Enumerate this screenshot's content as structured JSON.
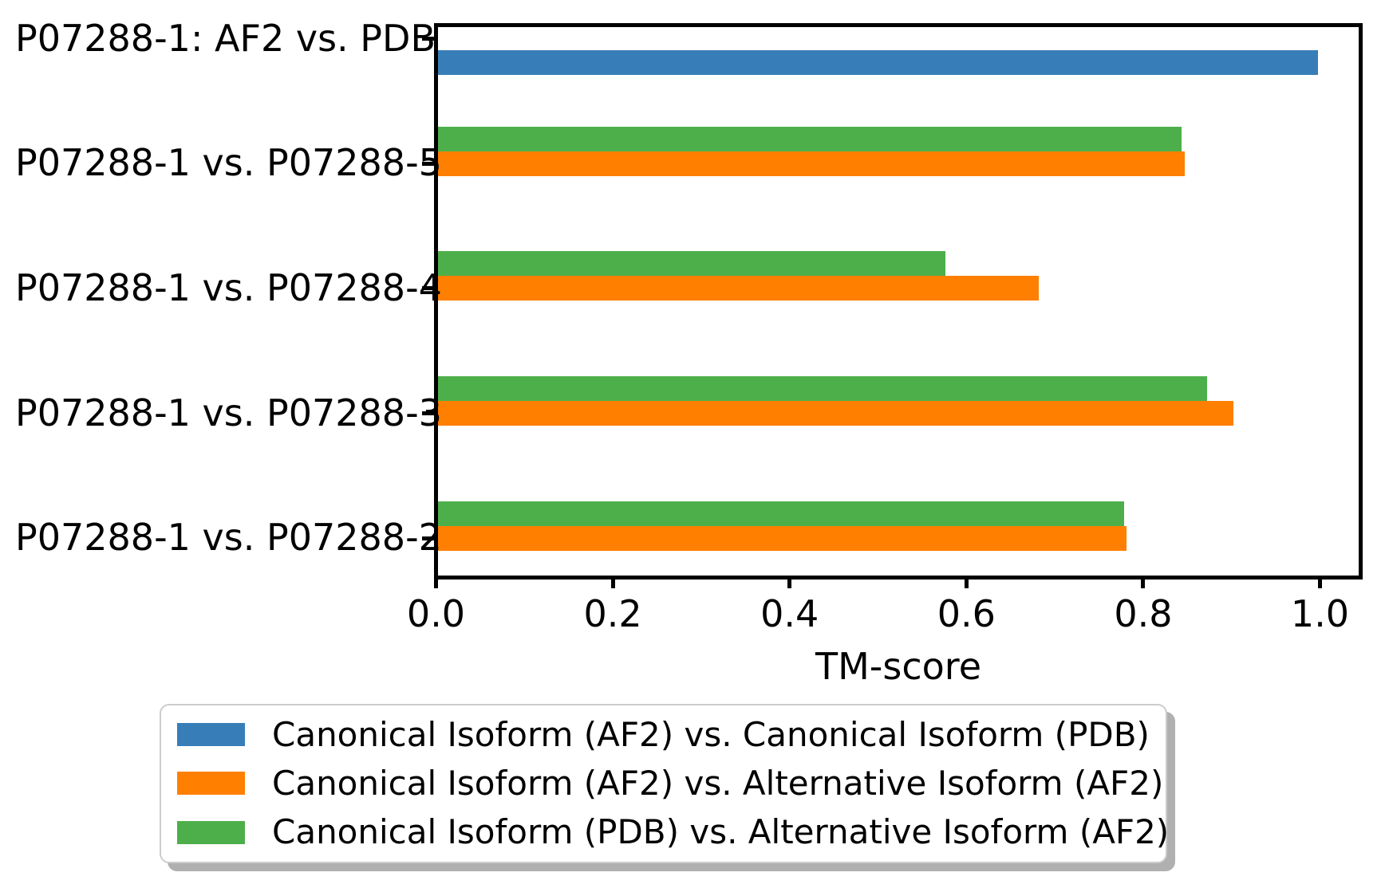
{
  "chart_data": {
    "type": "bar",
    "orientation": "horizontal",
    "title": "",
    "xlabel": "TM-score",
    "ylabel": "",
    "grid": false,
    "background": "#ffffff",
    "axis_color": "#000000",
    "xlim": [
      0.0,
      1.045
    ],
    "categories": [
      "P07288-1: AF2 vs. PDB",
      "P07288-1 vs. P07288-5",
      "P07288-1 vs. P07288-4",
      "P07288-1 vs. P07288-3",
      "P07288-1 vs. P07288-2"
    ],
    "series": [
      {
        "name": "Canonical Isoform (AF2) vs. Canonical Isoform (PDB)",
        "color": "#377eb8",
        "values": [
          0.998,
          null,
          null,
          null,
          null
        ]
      },
      {
        "name": "Canonical Isoform (AF2) vs. Alternative Isoform (AF2)",
        "color": "#ff7f00",
        "values": [
          null,
          0.847,
          0.682,
          0.902,
          0.781
        ]
      },
      {
        "name": "Canonical Isoform (PDB) vs. Alternative Isoform (AF2)",
        "color": "#4daf4a",
        "values": [
          null,
          0.843,
          0.576,
          0.872,
          0.778
        ]
      }
    ],
    "x_ticks": {
      "values": [
        0.0,
        0.2,
        0.4,
        0.6,
        0.8,
        1.0
      ],
      "labels": [
        "0.0",
        "0.2",
        "0.4",
        "0.6",
        "0.8",
        "1.0"
      ]
    },
    "legend_position": "below-chart"
  }
}
